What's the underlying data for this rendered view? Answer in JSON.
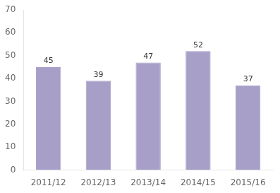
{
  "chart_data": {
    "type": "bar",
    "categories": [
      "2011/12",
      "2012/13",
      "2013/14",
      "2014/15",
      "2015/16"
    ],
    "values": [
      45,
      39,
      47,
      52,
      37
    ],
    "color": "#a89fc8",
    "ylim": [
      0,
      70
    ],
    "yticks": [
      0,
      10,
      20,
      30,
      40,
      50,
      60,
      70
    ],
    "grid": false,
    "data_labels": true
  }
}
